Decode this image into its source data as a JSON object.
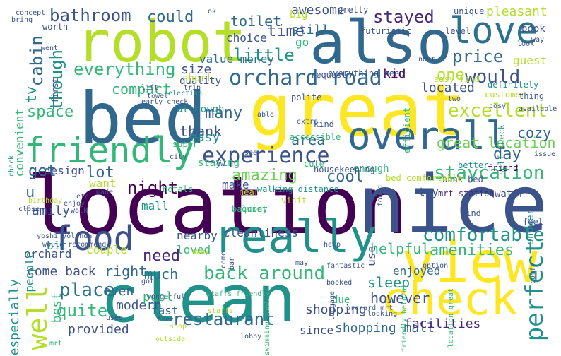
{
  "palette": {
    "purple": "#440154",
    "indigo": "#3b528b",
    "blue": "#31688e",
    "teal": "#21918c",
    "green": "#35b779",
    "lime": "#b5de2b",
    "yellow": "#fde725"
  },
  "words": [
    {
      "text": "location",
      "color": "#440154"
    },
    {
      "text": "nice",
      "color": "#3b528b"
    },
    {
      "text": "great",
      "color": "#fde725"
    },
    {
      "text": "clean",
      "color": "#21918c"
    },
    {
      "text": "bed",
      "color": "#31688e"
    },
    {
      "text": "robot",
      "color": "#b5de2b"
    },
    {
      "text": "also",
      "color": "#31688e"
    },
    {
      "text": "view",
      "color": "#fde725"
    },
    {
      "text": "really",
      "color": "#21918c"
    },
    {
      "text": "check",
      "color": "#fde725"
    },
    {
      "text": "friendly",
      "color": "#35b779"
    },
    {
      "text": "overall",
      "color": "#31688e"
    },
    {
      "text": "love",
      "color": "#2c728e"
    },
    {
      "text": "food",
      "color": "#3b528b"
    },
    {
      "text": "experience",
      "color": "#3b528b"
    },
    {
      "text": "orchard road",
      "color": "#31688e"
    },
    {
      "text": "back around",
      "color": "#35b779"
    },
    {
      "text": "excellent",
      "color": "#b5de2b"
    },
    {
      "text": "staycation",
      "color": "#35b779"
    },
    {
      "text": "comfortable",
      "color": "#21918c"
    },
    {
      "text": "everything",
      "color": "#35b779"
    },
    {
      "text": "restaurant",
      "color": "#31688e"
    },
    {
      "text": "amazing",
      "color": "#6ece58"
    },
    {
      "text": "would",
      "color": "#3b528b"
    },
    {
      "text": "place",
      "color": "#2c728e"
    },
    {
      "text": "quite",
      "color": "#35b779"
    },
    {
      "text": "well",
      "color": "#b5de2b"
    },
    {
      "text": "perfect",
      "color": "#21918c"
    },
    {
      "text": "amenities",
      "color": "#35b779"
    },
    {
      "text": "cool",
      "color": "#31688e"
    },
    {
      "text": "bathroom",
      "color": "#3b528b"
    },
    {
      "text": "could",
      "color": "#31688e"
    },
    {
      "text": "stayed",
      "color": "#482878"
    },
    {
      "text": "price",
      "color": "#31688e"
    },
    {
      "text": "little",
      "color": "#21918c"
    },
    {
      "text": "time",
      "color": "#3b528b"
    },
    {
      "text": "cabin",
      "color": "#31688e"
    },
    {
      "text": "though",
      "color": "#21918c"
    },
    {
      "text": "night",
      "color": "#440154"
    },
    {
      "text": "many",
      "color": "#31688e"
    },
    {
      "text": "space",
      "color": "#35b779"
    },
    {
      "text": "area",
      "color": "#31688e"
    },
    {
      "text": "lot",
      "color": "#31688e"
    },
    {
      "text": "need",
      "color": "#482878"
    },
    {
      "text": "get",
      "color": "#31688e"
    },
    {
      "text": "thank",
      "color": "#3b528b"
    },
    {
      "text": "great location",
      "color": "#6ece58"
    },
    {
      "text": "day",
      "color": "#31688e"
    },
    {
      "text": "one",
      "color": "#b5de2b"
    },
    {
      "text": "u",
      "color": "#2c728e"
    },
    {
      "text": "right",
      "color": "#31688e"
    },
    {
      "text": "much",
      "color": "#2c728e"
    },
    {
      "text": "come back",
      "color": "#3b528b"
    },
    {
      "text": "helpful",
      "color": "#35b779"
    },
    {
      "text": "sleep",
      "color": "#21918c"
    },
    {
      "text": "however",
      "color": "#3b528b"
    },
    {
      "text": "shopping",
      "color": "#3b528b"
    },
    {
      "text": "modern",
      "color": "#3b528b"
    },
    {
      "text": "even",
      "color": "#31688e"
    },
    {
      "text": "pleasant",
      "color": "#b5de2b"
    },
    {
      "text": "awesome",
      "color": "#3b528b"
    },
    {
      "text": "still",
      "color": "#31688e"
    },
    {
      "text": "toilet",
      "color": "#31688e"
    },
    {
      "text": "cozy",
      "color": "#31688e"
    },
    {
      "text": "easy",
      "color": "#21918c"
    },
    {
      "text": "compact",
      "color": "#35b779"
    },
    {
      "text": "size",
      "color": "#3b528b"
    },
    {
      "text": "located",
      "color": "#3b528b"
    },
    {
      "text": "kid",
      "color": "#440154"
    },
    {
      "text": "tv",
      "color": "#21918c"
    },
    {
      "text": "family",
      "color": "#3b528b"
    },
    {
      "text": "orchard",
      "color": "#3b528b"
    },
    {
      "text": "bit",
      "color": "#21918c"
    },
    {
      "text": "people",
      "color": "#21918c"
    },
    {
      "text": "especially",
      "color": "#21918c"
    },
    {
      "text": "best",
      "color": "#35b779"
    },
    {
      "text": "provided",
      "color": "#3b528b"
    },
    {
      "text": "shopping mall",
      "color": "#31688e"
    },
    {
      "text": "since",
      "color": "#3b528b"
    },
    {
      "text": "facilities",
      "color": "#482878"
    },
    {
      "text": "pool",
      "color": "#35b779"
    },
    {
      "text": "fast",
      "color": "#31688e"
    },
    {
      "text": "loved",
      "color": "#35b779"
    },
    {
      "text": "nearby",
      "color": "#3b528b"
    },
    {
      "text": "couple",
      "color": "#b5de2b"
    },
    {
      "text": "enjoyed",
      "color": "#31688e"
    },
    {
      "text": "use",
      "color": "#3b528b"
    },
    {
      "text": "shower",
      "color": "#21918c"
    },
    {
      "text": "convenient",
      "color": "#35b779"
    },
    {
      "text": "design",
      "color": "#3b528b"
    },
    {
      "text": "want",
      "color": "#b5de2b"
    },
    {
      "text": "make",
      "color": "#3b528b"
    },
    {
      "text": "staying",
      "color": "#35b779"
    },
    {
      "text": "enough",
      "color": "#35b779"
    },
    {
      "text": "mall",
      "color": "#21918c"
    },
    {
      "text": "cleanliness",
      "color": "#3b528b"
    },
    {
      "text": "try",
      "color": "#3b528b"
    },
    {
      "text": "due",
      "color": "#35b779"
    },
    {
      "text": "guest",
      "color": "#b5de2b"
    },
    {
      "text": "book",
      "color": "#3b528b"
    },
    {
      "text": "go",
      "color": "#35b779"
    },
    {
      "text": "choice",
      "color": "#3b528b"
    },
    {
      "text": "value money",
      "color": "#2c728e"
    },
    {
      "text": "big",
      "color": "#b5de2b"
    },
    {
      "text": "quality",
      "color": "#3b528b"
    },
    {
      "text": "although",
      "color": "#21918c"
    },
    {
      "text": "short",
      "color": "#b5de2b"
    },
    {
      "text": "super",
      "color": "#35b779"
    },
    {
      "text": "efficient",
      "color": "#35b779"
    },
    {
      "text": "water",
      "color": "#3b528b"
    },
    {
      "text": "find",
      "color": "#3b528b"
    },
    {
      "text": "feel",
      "color": "#3b528b"
    },
    {
      "text": "bunk bed",
      "color": "#3b528b"
    },
    {
      "text": "friend",
      "color": "#440154"
    },
    {
      "text": "mrt station",
      "color": "#482878"
    },
    {
      "text": "near",
      "color": "#b5de2b"
    },
    {
      "text": "walking distance",
      "color": "#21918c"
    },
    {
      "text": "quiet",
      "color": "#35b779"
    },
    {
      "text": "hotels",
      "color": "#35b779"
    },
    {
      "text": "balcony",
      "color": "#35b779"
    },
    {
      "text": "visit",
      "color": "#b5de2b"
    },
    {
      "text": "bed comfortable",
      "color": "#b5de2b"
    },
    {
      "text": "cute",
      "color": "#35b779"
    },
    {
      "text": "pretty",
      "color": "#3b528b"
    },
    {
      "text": "futuristic",
      "color": "#3b528b"
    },
    {
      "text": "unique",
      "color": "#3b528b"
    },
    {
      "text": "level",
      "color": "#3b528b"
    },
    {
      "text": "everything need",
      "color": "#3b528b"
    },
    {
      "text": "easy find",
      "color": "#b5de2b"
    },
    {
      "text": "definitely",
      "color": "#21918c"
    },
    {
      "text": "request",
      "color": "#3b528b"
    },
    {
      "text": "customer",
      "color": "#b5de2b"
    },
    {
      "text": "available",
      "color": "#3b528b"
    },
    {
      "text": "thing",
      "color": "#3b528b"
    },
    {
      "text": "polite",
      "color": "#3b528b"
    },
    {
      "text": "extra",
      "color": "#3b528b"
    },
    {
      "text": "kind",
      "color": "#3b528b"
    },
    {
      "text": "accessible",
      "color": "#35b779"
    },
    {
      "text": "housekeeping",
      "color": "#3b528b"
    },
    {
      "text": "better",
      "color": "#21918c"
    },
    {
      "text": "self check",
      "color": "#21918c"
    },
    {
      "text": "early check",
      "color": "#3b528b"
    },
    {
      "text": "trip",
      "color": "#3b528b"
    },
    {
      "text": "lift",
      "color": "#3b528b"
    },
    {
      "text": "selection",
      "color": "#21918c"
    },
    {
      "text": "towel",
      "color": "#3b528b"
    },
    {
      "text": "first",
      "color": "#3b528b"
    },
    {
      "text": "worth",
      "color": "#3b528b"
    },
    {
      "text": "bring",
      "color": "#3b528b"
    },
    {
      "text": "concept",
      "color": "#3b528b"
    },
    {
      "text": "went",
      "color": "#3b528b"
    },
    {
      "text": "ok",
      "color": "#3b528b"
    },
    {
      "text": "look",
      "color": "#3b528b"
    },
    {
      "text": "next",
      "color": "#3b528b"
    },
    {
      "text": "two",
      "color": "#3b528b"
    },
    {
      "text": "cosy",
      "color": "#3b528b"
    },
    {
      "text": "way",
      "color": "#3b528b"
    },
    {
      "text": "issue",
      "color": "#3b528b"
    },
    {
      "text": "see",
      "color": "#3b528b"
    },
    {
      "text": "city",
      "color": "#3b528b"
    },
    {
      "text": "new",
      "color": "#3b528b"
    },
    {
      "text": "able",
      "color": "#3b528b"
    },
    {
      "text": "made",
      "color": "#3b528b"
    },
    {
      "text": "birthday",
      "color": "#b5de2b"
    },
    {
      "text": "etc",
      "color": "#3b528b"
    },
    {
      "text": "enjoy",
      "color": "#3b528b"
    },
    {
      "text": "walk",
      "color": "#3b528b"
    },
    {
      "text": "close",
      "color": "#3b528b"
    },
    {
      "text": "yoshi yolanda",
      "color": "#3b528b"
    },
    {
      "text": "would recommend",
      "color": "#3b528b"
    },
    {
      "text": "come",
      "color": "#3b528b"
    },
    {
      "text": "bar",
      "color": "#3b528b"
    },
    {
      "text": "away",
      "color": "#b5de2b"
    },
    {
      "text": "help",
      "color": "#3b528b"
    },
    {
      "text": "found",
      "color": "#3b528b"
    },
    {
      "text": "option",
      "color": "#3b528b"
    },
    {
      "text": "may",
      "color": "#3b528b"
    },
    {
      "text": "fantastic",
      "color": "#3b528b"
    },
    {
      "text": "friendly helpful",
      "color": "#35b779"
    },
    {
      "text": "via",
      "color": "#3b528b"
    },
    {
      "text": "booked",
      "color": "#3b528b"
    },
    {
      "text": "luggage",
      "color": "#3b528b"
    },
    {
      "text": "got",
      "color": "#3b528b"
    },
    {
      "text": "wonderful",
      "color": "#3b528b"
    },
    {
      "text": "free",
      "color": "#3b528b"
    },
    {
      "text": "shop",
      "color": "#b5de2b"
    },
    {
      "text": "used",
      "color": "#3b528b"
    },
    {
      "text": "outside",
      "color": "#b5de2b"
    },
    {
      "text": "staffs friendly",
      "color": "#35b779"
    },
    {
      "text": "lobby",
      "color": "#3b528b"
    },
    {
      "text": "staffs",
      "color": "#b5de2b"
    },
    {
      "text": "swimming pool",
      "color": "#35b779"
    },
    {
      "text": "orchard mrt",
      "color": "#3b528b"
    },
    {
      "text": "looking",
      "color": "#3b528b"
    },
    {
      "text": "location great",
      "color": "#35b779"
    },
    {
      "text": "comfy",
      "color": "#3b528b"
    },
    {
      "text": "mrt",
      "color": "#35b779"
    },
    {
      "text": "check",
      "color": "#21918c"
    }
  ]
}
